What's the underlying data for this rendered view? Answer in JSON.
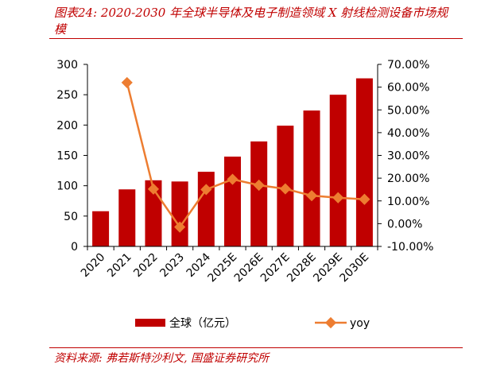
{
  "header": {
    "title": "图表24: 2020-2030 年全球半导体及电子制造领域 X 射线检测设备市场规模"
  },
  "footer": {
    "source": "资料来源: 弗若斯特沙利文, 国盛证券研究所"
  },
  "chart_data": {
    "type": "bar",
    "title": "",
    "xlabel": "",
    "ylabel": "",
    "categories": [
      "2020",
      "2021",
      "2022",
      "2023",
      "2024",
      "2025E",
      "2026E",
      "2027E",
      "2028E",
      "2029E",
      "2030E"
    ],
    "series": [
      {
        "name": "全球（亿元）",
        "type": "bar",
        "axis": "left",
        "color": "#c00000",
        "values": [
          58,
          94,
          109,
          107,
          123,
          148,
          173,
          199,
          224,
          250,
          277
        ]
      },
      {
        "name": "yoy",
        "type": "line",
        "axis": "right",
        "color": "#ed7d31",
        "values": [
          null,
          62.0,
          15.2,
          -1.5,
          15.0,
          19.5,
          16.9,
          15.3,
          12.3,
          11.4,
          10.7
        ]
      }
    ],
    "ylim": [
      0,
      300
    ],
    "yticks": [
      0,
      50,
      100,
      150,
      200,
      250,
      300
    ],
    "y2lim": [
      -10,
      70
    ],
    "y2ticks": [
      "-10.00%",
      "0.00%",
      "10.00%",
      "20.00%",
      "30.00%",
      "40.00%",
      "50.00%",
      "60.00%",
      "70.00%"
    ],
    "grid": false,
    "legend_position": "bottom"
  }
}
